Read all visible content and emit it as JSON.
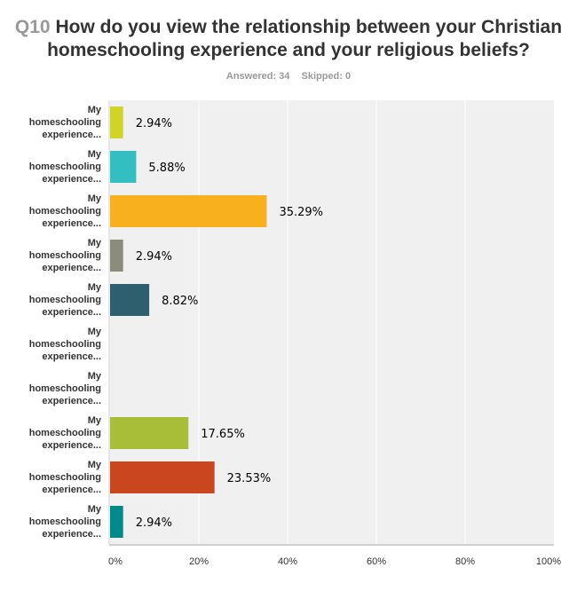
{
  "header": {
    "question_number": "Q10",
    "question": "How do you view the relationship between your Christian homeschooling experience and your religious beliefs?",
    "line1": "How do you view the relationship between your Christian",
    "line2": "homeschooling experience and your religious beliefs?",
    "answered": "Answered: 34",
    "skipped": "Skipped: 0"
  },
  "chart_data": {
    "type": "bar",
    "orientation": "horizontal",
    "categories": [
      "My homeschooling experience...",
      "My homeschooling experience...",
      "My homeschooling experience...",
      "My homeschooling experience...",
      "My homeschooling experience...",
      "My homeschooling experience...",
      "My homeschooling experience...",
      "My homeschooling experience...",
      "My homeschooling experience...",
      "My homeschooling experience..."
    ],
    "values": [
      2.94,
      5.88,
      35.29,
      2.94,
      8.82,
      0,
      0,
      17.65,
      23.53,
      2.94
    ],
    "data_labels": [
      "2.94%",
      "5.88%",
      "35.29%",
      "2.94%",
      "8.82%",
      "",
      "",
      "17.65%",
      "23.53%",
      "2.94%"
    ],
    "colors": [
      "#cfd427",
      "#33bfc1",
      "#f8b01e",
      "#8c8c7d",
      "#2e5f6e",
      "#cccccc",
      "#cccccc",
      "#a8be38",
      "#c9461e",
      "#008b8a"
    ],
    "xlim": [
      0,
      100
    ],
    "ticks": [
      "0%",
      "20%",
      "40%",
      "60%",
      "80%",
      "100%"
    ],
    "tick_values": [
      0,
      20,
      40,
      60,
      80,
      100
    ],
    "grid": true,
    "background": "#f0f0f0"
  }
}
